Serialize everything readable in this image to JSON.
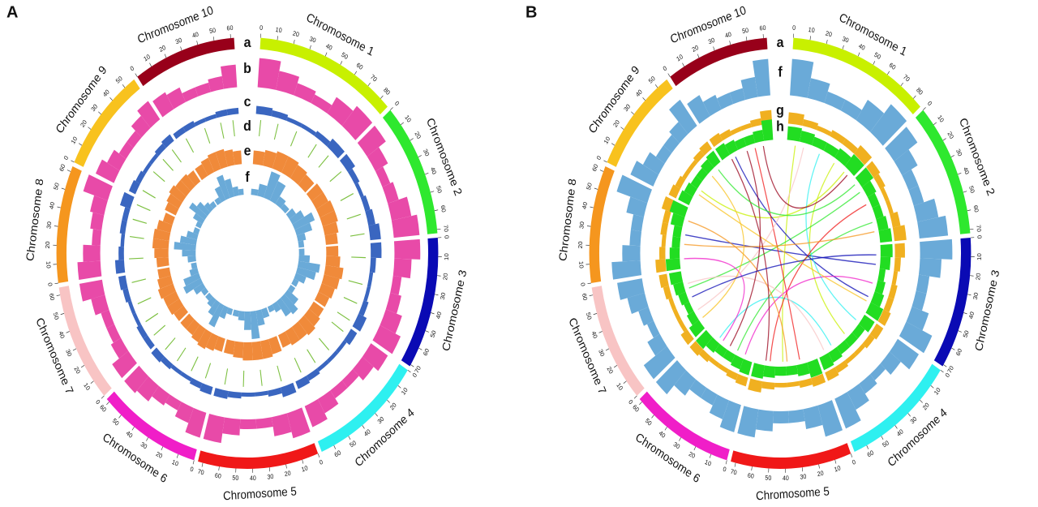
{
  "chromosomes": [
    {
      "name": "Chromosome 1",
      "length": 86,
      "color": "#c8f000",
      "ticks": [
        0,
        10,
        20,
        30,
        40,
        50,
        60,
        70,
        80
      ]
    },
    {
      "name": "Chromosome 2",
      "length": 72,
      "color": "#2ee82e",
      "ticks": [
        0,
        10,
        20,
        30,
        40,
        50,
        60,
        70
      ]
    },
    {
      "name": "Chromosome 3",
      "length": 71,
      "color": "#0a0ab4",
      "ticks": [
        0,
        10,
        20,
        30,
        40,
        50,
        60,
        70
      ]
    },
    {
      "name": "Chromosome 4",
      "length": 68,
      "color": "#2ef0f0",
      "ticks": [
        0,
        10,
        20,
        30,
        40,
        50,
        60
      ]
    },
    {
      "name": "Chromosome 5",
      "length": 73,
      "color": "#f01818",
      "ticks": [
        0,
        10,
        20,
        30,
        40,
        50,
        60,
        70
      ]
    },
    {
      "name": "Chromosome 6",
      "length": 62,
      "color": "#f01ec8",
      "ticks": [
        0,
        10,
        20,
        30,
        40,
        50,
        60
      ]
    },
    {
      "name": "Chromosome 7",
      "length": 64,
      "color": "#f8c4c4",
      "ticks": [
        0,
        10,
        20,
        30,
        40,
        50,
        60
      ]
    },
    {
      "name": "Chromosome 8",
      "length": 63,
      "color": "#f5961e",
      "ticks": [
        0,
        10,
        20,
        30,
        40,
        50,
        60
      ]
    },
    {
      "name": "Chromosome 9",
      "length": 57,
      "color": "#f8c21e",
      "ticks": [
        0,
        10,
        20,
        30,
        40,
        50
      ]
    },
    {
      "name": "Chromosome 10",
      "length": 62,
      "color": "#98001a",
      "ticks": [
        0,
        10,
        20,
        30,
        40,
        50,
        60
      ]
    }
  ],
  "chart_data": [
    {
      "type": "circos",
      "panel_label": "A",
      "ideogram_label": "a",
      "ylim": [
        0,
        1
      ],
      "tracks": [
        {
          "label": "b",
          "kind": "histogram",
          "color": "#e84aa8",
          "values": [
            [
              0.9,
              0.6,
              0.4,
              0.3,
              0.6,
              0.8
            ],
            [
              0.8,
              0.5,
              0.3,
              0.4,
              0.7,
              0.9
            ],
            [
              0.9,
              0.6,
              0.3,
              0.4,
              0.6,
              0.8
            ],
            [
              0.7,
              0.5,
              0.3,
              0.3,
              0.5,
              0.7
            ],
            [
              0.8,
              0.6,
              0.3,
              0.3,
              0.5,
              0.8
            ],
            [
              0.8,
              0.5,
              0.3,
              0.4,
              0.6,
              0.7
            ],
            [
              0.7,
              0.4,
              0.3,
              0.3,
              0.5,
              0.8
            ],
            [
              0.8,
              0.6,
              0.3,
              0.4,
              0.5,
              0.9
            ],
            [
              0.7,
              0.5,
              0.3,
              0.3,
              0.5,
              0.7
            ],
            [
              0.6,
              0.5,
              0.3,
              0.3,
              0.4,
              0.7
            ]
          ]
        },
        {
          "label": "c",
          "kind": "histogram",
          "color": "#3a66c0",
          "values": [
            [
              0.4,
              0.3,
              0.2,
              0.2,
              0.3,
              0.5
            ],
            [
              0.5,
              0.3,
              0.2,
              0.3,
              0.4,
              0.6
            ],
            [
              0.6,
              0.3,
              0.2,
              0.2,
              0.3,
              0.5
            ],
            [
              0.4,
              0.2,
              0.2,
              0.2,
              0.3,
              0.4
            ],
            [
              0.5,
              0.3,
              0.2,
              0.2,
              0.3,
              0.4
            ],
            [
              0.4,
              0.3,
              0.2,
              0.2,
              0.3,
              0.4
            ],
            [
              0.3,
              0.3,
              0.2,
              0.2,
              0.3,
              0.4
            ],
            [
              0.5,
              0.3,
              0.2,
              0.3,
              0.3,
              0.6
            ],
            [
              0.4,
              0.3,
              0.2,
              0.2,
              0.3,
              0.4
            ],
            [
              0.3,
              0.3,
              0.2,
              0.2,
              0.3,
              0.3
            ]
          ]
        },
        {
          "label": "d",
          "kind": "marks",
          "color": "#7cc040",
          "values": [
            [
              5,
              22,
              41,
              63,
              78
            ],
            [
              8,
              30,
              49,
              66
            ],
            [
              12,
              35,
              52,
              68
            ],
            [
              6,
              27,
              44,
              60
            ],
            [
              10,
              29,
              47,
              65
            ],
            [
              9,
              24,
              40,
              55
            ],
            [
              7,
              21,
              38,
              57
            ],
            [
              11,
              30,
              45,
              58
            ],
            [
              6,
              25,
              39,
              51
            ],
            [
              8,
              28,
              44,
              56
            ]
          ]
        },
        {
          "label": "e",
          "kind": "histogram",
          "color": "#f08a3a",
          "values": [
            [
              0.6,
              0.7,
              0.8,
              0.8,
              0.7,
              0.6
            ],
            [
              0.7,
              0.7,
              0.8,
              0.8,
              0.7,
              0.6
            ],
            [
              0.6,
              0.7,
              0.9,
              0.8,
              0.7,
              0.6
            ],
            [
              0.6,
              0.7,
              0.8,
              0.7,
              0.7,
              0.6
            ],
            [
              0.7,
              0.8,
              0.8,
              0.8,
              0.7,
              0.6
            ],
            [
              0.6,
              0.7,
              0.8,
              0.7,
              0.6,
              0.6
            ],
            [
              0.6,
              0.7,
              0.7,
              0.8,
              0.7,
              0.6
            ],
            [
              0.6,
              0.7,
              0.8,
              0.8,
              0.7,
              0.5
            ],
            [
              0.6,
              0.7,
              0.8,
              0.7,
              0.7,
              0.6
            ],
            [
              0.6,
              0.7,
              0.8,
              0.8,
              0.7,
              0.6
            ]
          ]
        },
        {
          "label": "f",
          "kind": "histogram",
          "color": "#6aaad8",
          "values": [
            [
              0.2,
              0.4,
              0.9,
              0.7,
              0.3,
              0.2
            ],
            [
              0.3,
              0.5,
              0.8,
              0.6,
              0.3,
              0.2
            ],
            [
              0.2,
              0.4,
              0.8,
              0.7,
              0.4,
              0.2
            ],
            [
              0.2,
              0.5,
              0.7,
              0.6,
              0.3,
              0.2
            ],
            [
              0.3,
              0.5,
              0.9,
              0.6,
              0.3,
              0.2
            ],
            [
              0.2,
              0.4,
              0.8,
              0.5,
              0.3,
              0.2
            ],
            [
              0.2,
              0.4,
              0.7,
              0.6,
              0.3,
              0.2
            ],
            [
              0.3,
              0.5,
              0.8,
              0.6,
              0.4,
              0.2
            ],
            [
              0.2,
              0.4,
              0.7,
              0.5,
              0.3,
              0.2
            ],
            [
              0.2,
              0.5,
              0.8,
              0.6,
              0.3,
              0.2
            ]
          ]
        }
      ]
    },
    {
      "type": "circos",
      "panel_label": "B",
      "ideogram_label": "a",
      "ylim": [
        0,
        1
      ],
      "tracks": [
        {
          "label": "f",
          "kind": "histogram",
          "color": "#6aaad8",
          "values": [
            [
              0.9,
              0.5,
              0.3,
              0.3,
              0.6,
              0.9
            ],
            [
              0.8,
              0.5,
              0.3,
              0.3,
              0.6,
              0.8
            ],
            [
              0.9,
              0.6,
              0.3,
              0.3,
              0.5,
              0.8
            ],
            [
              0.7,
              0.4,
              0.2,
              0.3,
              0.5,
              0.8
            ],
            [
              0.8,
              0.5,
              0.3,
              0.3,
              0.5,
              0.7
            ],
            [
              0.7,
              0.5,
              0.3,
              0.3,
              0.5,
              0.8
            ],
            [
              0.8,
              0.4,
              0.2,
              0.3,
              0.5,
              0.7
            ],
            [
              0.8,
              0.5,
              0.3,
              0.3,
              0.5,
              0.9
            ],
            [
              0.7,
              0.5,
              0.3,
              0.3,
              0.4,
              0.8
            ],
            [
              0.6,
              0.4,
              0.3,
              0.3,
              0.5,
              0.9
            ]
          ]
        },
        {
          "label": "g",
          "kind": "histogram",
          "color": "#f0b020",
          "values": [
            [
              0.5,
              0.3,
              0.2,
              0.3,
              0.3,
              0.5
            ],
            [
              0.4,
              0.3,
              0.2,
              0.2,
              0.4,
              0.6
            ],
            [
              0.5,
              0.3,
              0.2,
              0.3,
              0.3,
              0.4
            ],
            [
              0.4,
              0.3,
              0.2,
              0.2,
              0.3,
              0.4
            ],
            [
              0.4,
              0.3,
              0.2,
              0.2,
              0.3,
              0.5
            ],
            [
              0.4,
              0.3,
              0.2,
              0.2,
              0.3,
              0.4
            ],
            [
              0.4,
              0.2,
              0.2,
              0.2,
              0.3,
              0.4
            ],
            [
              0.5,
              0.3,
              0.2,
              0.3,
              0.3,
              0.5
            ],
            [
              0.4,
              0.3,
              0.2,
              0.2,
              0.3,
              0.4
            ],
            [
              0.4,
              0.3,
              0.2,
              0.2,
              0.3,
              0.6
            ]
          ]
        },
        {
          "label": "h",
          "kind": "histogram",
          "color": "#22dd22",
          "values": [
            [
              0.6,
              0.5,
              0.4,
              0.4,
              0.5,
              0.7
            ],
            [
              0.7,
              0.5,
              0.4,
              0.4,
              0.5,
              0.6
            ],
            [
              0.6,
              0.5,
              0.3,
              0.4,
              0.5,
              0.7
            ],
            [
              0.6,
              0.4,
              0.4,
              0.4,
              0.5,
              0.6
            ],
            [
              0.7,
              0.5,
              0.4,
              0.4,
              0.5,
              0.6
            ],
            [
              0.6,
              0.5,
              0.4,
              0.4,
              0.5,
              0.7
            ],
            [
              0.6,
              0.4,
              0.3,
              0.4,
              0.5,
              0.6
            ],
            [
              0.7,
              0.5,
              0.4,
              0.4,
              0.6,
              0.8
            ],
            [
              0.6,
              0.5,
              0.4,
              0.4,
              0.5,
              0.6
            ],
            [
              0.6,
              0.5,
              0.4,
              0.4,
              0.5,
              0.9
            ]
          ]
        }
      ],
      "links": [
        [
          1,
          10,
          5,
          40
        ],
        [
          1,
          60,
          4,
          30
        ],
        [
          1,
          75,
          9,
          20
        ],
        [
          2,
          15,
          7,
          45
        ],
        [
          2,
          50,
          6,
          20
        ],
        [
          3,
          20,
          8,
          35
        ],
        [
          3,
          55,
          10,
          15
        ],
        [
          4,
          10,
          1,
          40
        ],
        [
          4,
          50,
          6,
          45
        ],
        [
          5,
          20,
          10,
          40
        ],
        [
          5,
          55,
          2,
          30
        ],
        [
          6,
          10,
          3,
          40
        ],
        [
          6,
          40,
          8,
          10
        ],
        [
          7,
          20,
          1,
          20
        ],
        [
          7,
          50,
          4,
          60
        ],
        [
          8,
          25,
          2,
          60
        ],
        [
          8,
          50,
          5,
          35
        ],
        [
          9,
          15,
          3,
          60
        ],
        [
          9,
          40,
          7,
          10
        ],
        [
          10,
          10,
          5,
          60
        ],
        [
          10,
          30,
          6,
          30
        ],
        [
          10,
          50,
          1,
          80
        ],
        [
          2,
          5,
          9,
          50
        ],
        [
          3,
          10,
          7,
          35
        ]
      ]
    }
  ]
}
